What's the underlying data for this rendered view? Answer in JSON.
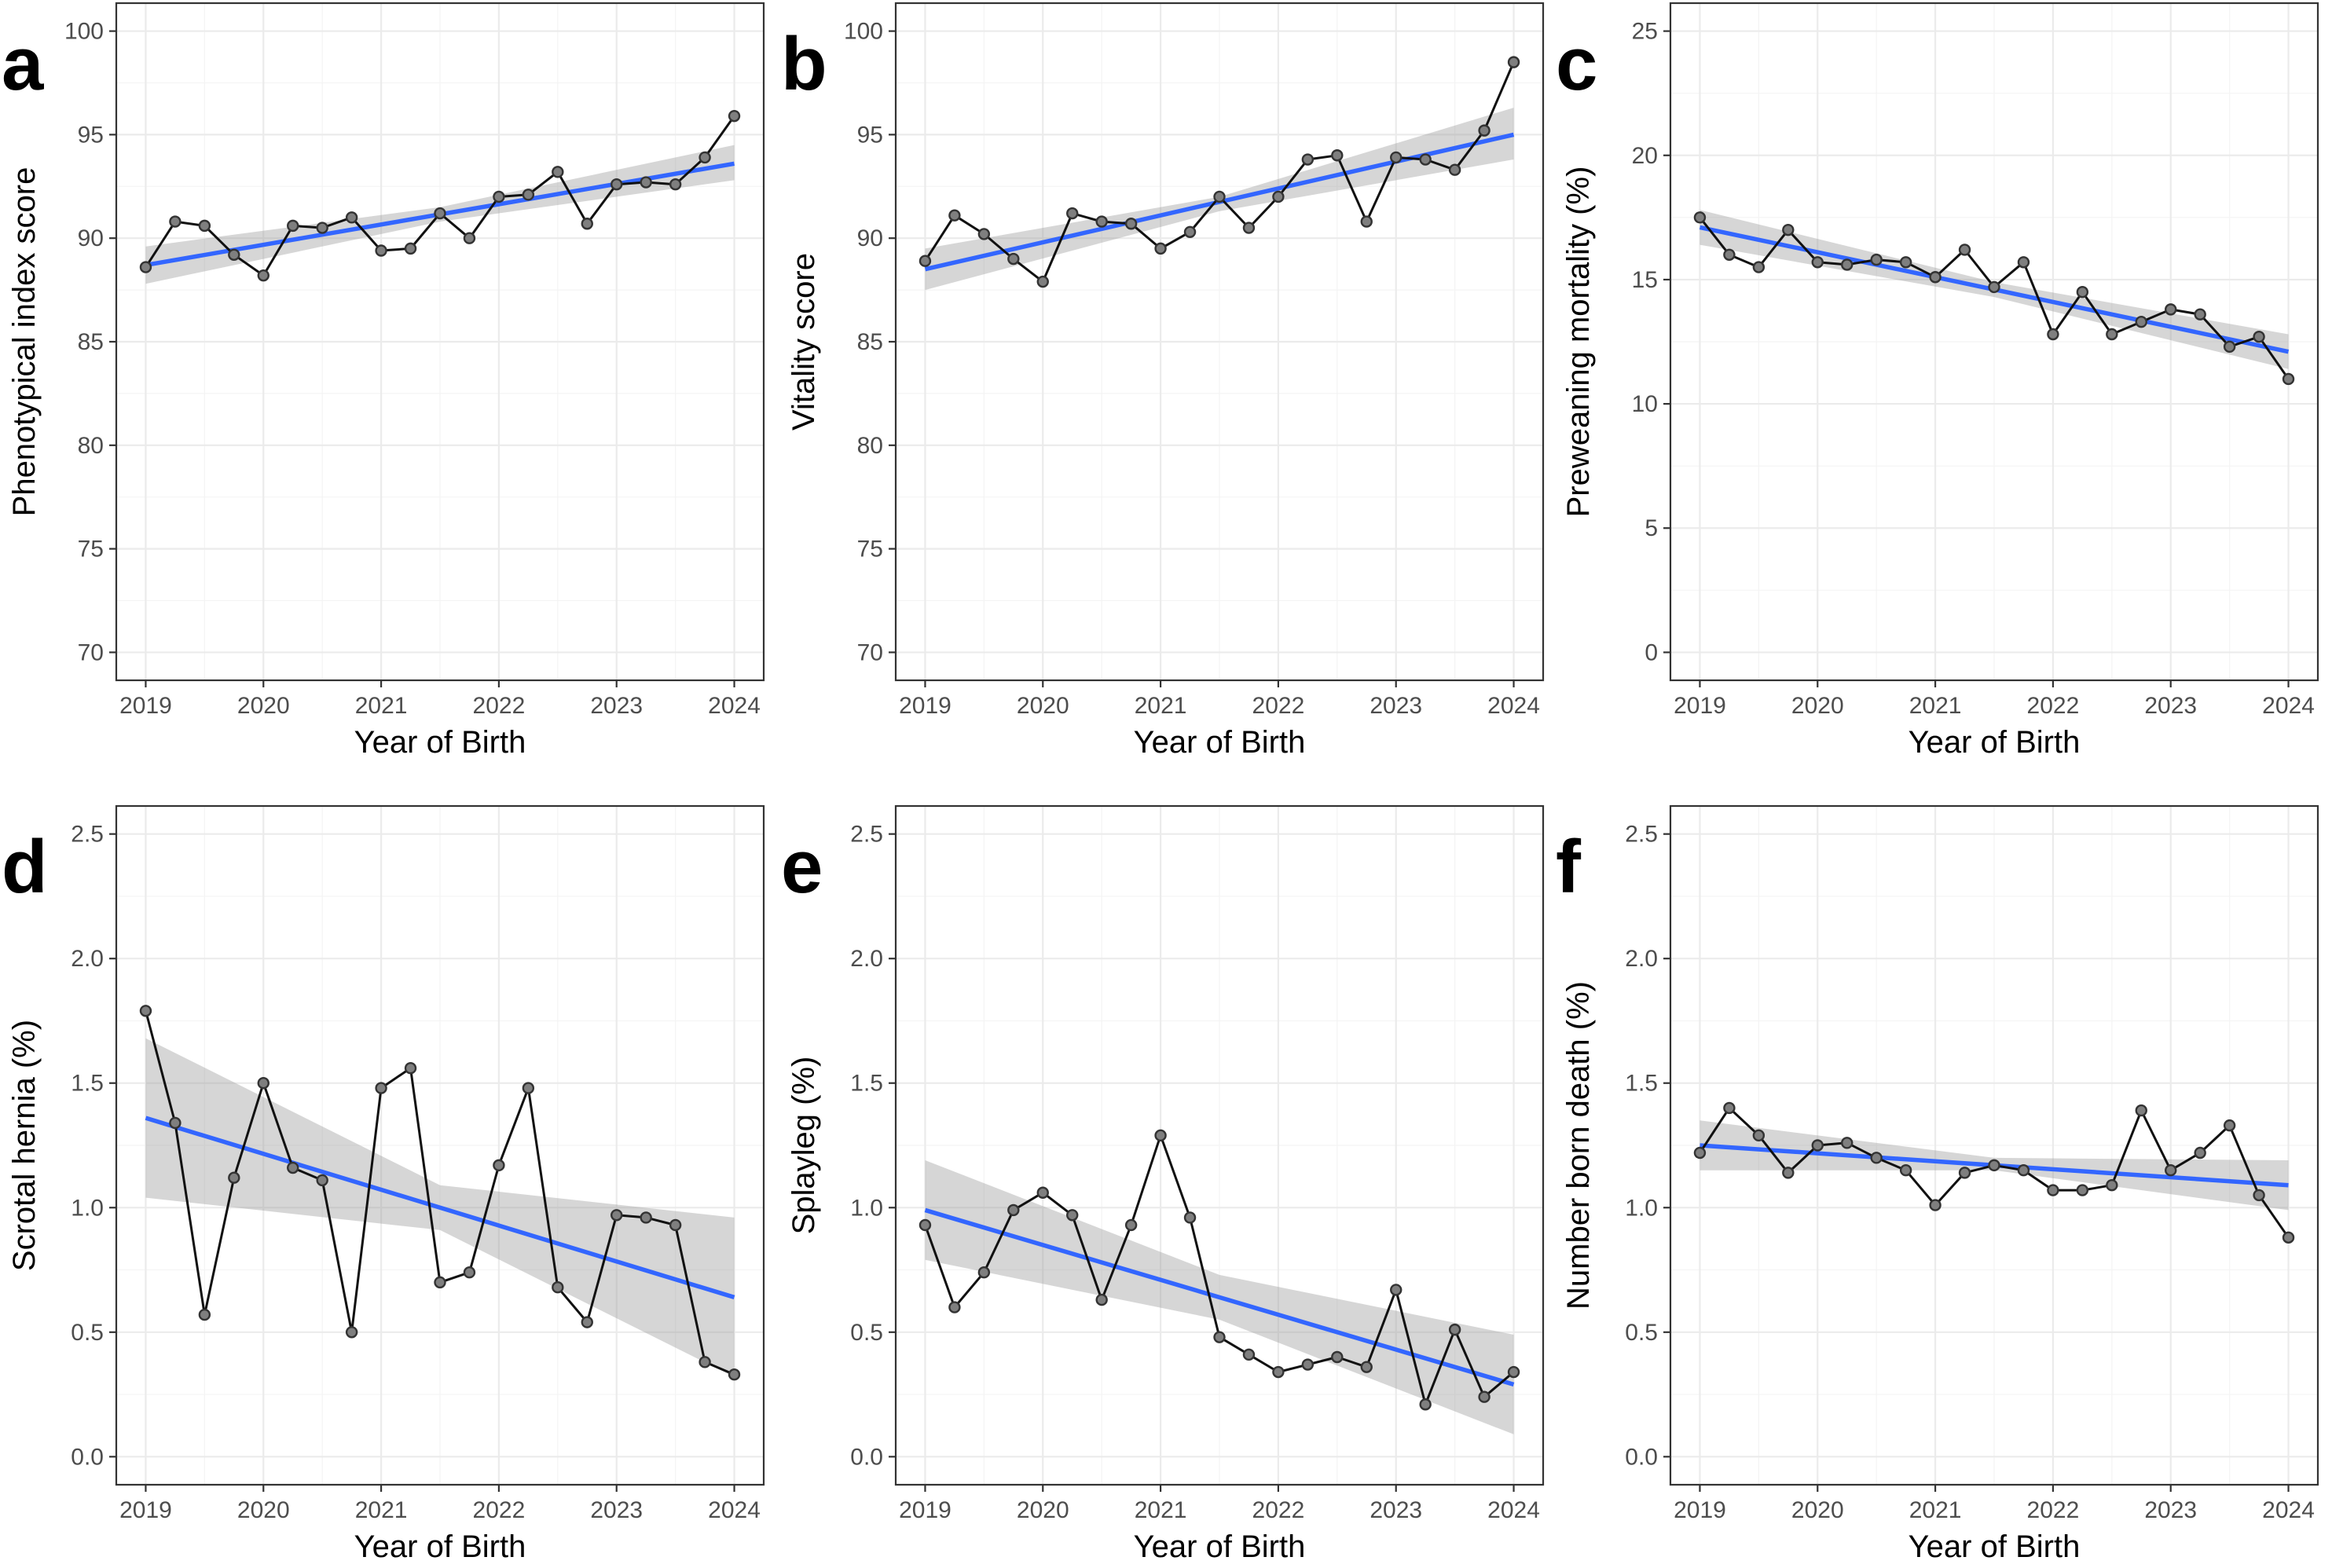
{
  "chart_data": [
    {
      "id": "a",
      "panel_letter": "a",
      "type": "line",
      "xlabel": "Year of Birth",
      "ylabel": "Phenotypical index score",
      "xlim": [
        2019,
        2024
      ],
      "ylim": [
        70,
        100
      ],
      "x_ticks": [
        2019,
        2020,
        2021,
        2022,
        2023,
        2024
      ],
      "x_tick_labels": [
        "2019",
        "2020",
        "2021",
        "2022",
        "2023",
        "2024"
      ],
      "y_ticks": [
        70,
        75,
        80,
        85,
        90,
        95,
        100
      ],
      "y_tick_labels": [
        "70",
        "75",
        "80",
        "85",
        "90",
        "95",
        "100"
      ],
      "grid": true,
      "x": [
        2019.0,
        2019.25,
        2019.5,
        2019.75,
        2020.0,
        2020.25,
        2020.5,
        2020.75,
        2021.0,
        2021.25,
        2021.5,
        2021.75,
        2022.0,
        2022.25,
        2022.5,
        2022.75,
        2023.0,
        2023.25,
        2023.5,
        2023.75,
        2024.0
      ],
      "values": [
        88.6,
        90.8,
        90.6,
        89.2,
        88.2,
        90.6,
        90.5,
        91.0,
        89.4,
        89.5,
        91.2,
        90.0,
        92.0,
        92.1,
        93.2,
        90.7,
        92.6,
        92.7,
        92.6,
        93.9,
        95.9
      ],
      "trend": {
        "x": [
          2019,
          2024
        ],
        "y": [
          88.7,
          93.6
        ]
      },
      "ci": {
        "x": [
          2019,
          2021.5,
          2024
        ],
        "lower": [
          87.8,
          90.8,
          92.8
        ],
        "upper": [
          89.6,
          91.5,
          94.5
        ]
      },
      "colors": {
        "series": "#111111",
        "points": "#7f7f7f",
        "trend": "#3366ff",
        "band": "#999999"
      }
    },
    {
      "id": "b",
      "panel_letter": "b",
      "type": "line",
      "xlabel": "Year of Birth",
      "ylabel": "Vitality score",
      "xlim": [
        2019,
        2024
      ],
      "ylim": [
        70,
        100
      ],
      "x_ticks": [
        2019,
        2020,
        2021,
        2022,
        2023,
        2024
      ],
      "x_tick_labels": [
        "2019",
        "2020",
        "2021",
        "2022",
        "2023",
        "2024"
      ],
      "y_ticks": [
        70,
        75,
        80,
        85,
        90,
        95,
        100
      ],
      "y_tick_labels": [
        "70",
        "75",
        "80",
        "85",
        "90",
        "95",
        "100"
      ],
      "grid": true,
      "x": [
        2019.0,
        2019.25,
        2019.5,
        2019.75,
        2020.0,
        2020.25,
        2020.5,
        2020.75,
        2021.0,
        2021.25,
        2021.5,
        2021.75,
        2022.0,
        2022.25,
        2022.5,
        2022.75,
        2023.0,
        2023.25,
        2023.5,
        2023.75,
        2024.0
      ],
      "values": [
        88.9,
        91.1,
        90.2,
        89.0,
        87.9,
        91.2,
        90.8,
        90.7,
        89.5,
        90.3,
        92.0,
        90.5,
        92.0,
        93.8,
        94.0,
        90.8,
        93.9,
        93.8,
        93.3,
        95.2,
        98.5
      ],
      "trend": {
        "x": [
          2019,
          2024
        ],
        "y": [
          88.5,
          95.0
        ]
      },
      "ci": {
        "x": [
          2019,
          2021.5,
          2024
        ],
        "lower": [
          87.5,
          91.3,
          93.8
        ],
        "upper": [
          89.5,
          92.0,
          96.3
        ]
      },
      "colors": {
        "series": "#111111",
        "points": "#7f7f7f",
        "trend": "#3366ff",
        "band": "#999999"
      }
    },
    {
      "id": "c",
      "panel_letter": "c",
      "type": "line",
      "xlabel": "Year of Birth",
      "ylabel": "Preweaning mortality (%)",
      "xlim": [
        2019,
        2024
      ],
      "ylim": [
        0,
        25
      ],
      "x_ticks": [
        2019,
        2020,
        2021,
        2022,
        2023,
        2024
      ],
      "x_tick_labels": [
        "2019",
        "2020",
        "2021",
        "2022",
        "2023",
        "2024"
      ],
      "y_ticks": [
        0,
        5,
        10,
        15,
        20,
        25
      ],
      "y_tick_labels": [
        "0",
        "5",
        "10",
        "15",
        "20",
        "25"
      ],
      "grid": true,
      "x": [
        2019.0,
        2019.25,
        2019.5,
        2019.75,
        2020.0,
        2020.25,
        2020.5,
        2020.75,
        2021.0,
        2021.25,
        2021.5,
        2021.75,
        2022.0,
        2022.25,
        2022.5,
        2022.75,
        2023.0,
        2023.25,
        2023.5,
        2023.75,
        2024.0
      ],
      "values": [
        17.5,
        16.0,
        15.5,
        17.0,
        15.7,
        15.6,
        15.8,
        15.7,
        15.1,
        16.2,
        14.7,
        15.7,
        12.8,
        14.5,
        12.8,
        13.3,
        13.8,
        13.6,
        12.3,
        12.7,
        11.0
      ],
      "trend": {
        "x": [
          2019,
          2024
        ],
        "y": [
          17.1,
          12.1
        ]
      },
      "ci": {
        "x": [
          2019,
          2021.5,
          2024
        ],
        "lower": [
          16.4,
          14.3,
          11.4
        ],
        "upper": [
          17.8,
          14.9,
          12.8
        ]
      },
      "colors": {
        "series": "#111111",
        "points": "#7f7f7f",
        "trend": "#3366ff",
        "band": "#999999"
      }
    },
    {
      "id": "d",
      "panel_letter": "d",
      "type": "line",
      "xlabel": "Year of Birth",
      "ylabel": "Scrotal hernia (%)",
      "xlim": [
        2019,
        2024
      ],
      "ylim": [
        0,
        2.5
      ],
      "x_ticks": [
        2019,
        2020,
        2021,
        2022,
        2023,
        2024
      ],
      "x_tick_labels": [
        "2019",
        "2020",
        "2021",
        "2022",
        "2023",
        "2024"
      ],
      "y_ticks": [
        0,
        0.5,
        1.0,
        1.5,
        2.0,
        2.5
      ],
      "y_tick_labels": [
        "0.0",
        "0.5",
        "1.0",
        "1.5",
        "2.0",
        "2.5"
      ],
      "grid": true,
      "x": [
        2019.0,
        2019.25,
        2019.5,
        2019.75,
        2020.0,
        2020.25,
        2020.5,
        2020.75,
        2021.0,
        2021.25,
        2021.5,
        2021.75,
        2022.0,
        2022.25,
        2022.5,
        2022.75,
        2023.0,
        2023.25,
        2023.5,
        2023.75,
        2024.0
      ],
      "values": [
        1.79,
        1.34,
        0.57,
        1.12,
        1.5,
        1.16,
        1.11,
        0.5,
        1.48,
        1.56,
        0.7,
        0.74,
        1.17,
        1.48,
        0.68,
        0.54,
        0.97,
        0.96,
        0.93,
        0.38,
        0.33
      ],
      "trend": {
        "x": [
          2019,
          2024
        ],
        "y": [
          1.36,
          0.64
        ]
      },
      "ci": {
        "x": [
          2019,
          2021.5,
          2024
        ],
        "lower": [
          1.04,
          0.91,
          0.32
        ],
        "upper": [
          1.68,
          1.09,
          0.96
        ]
      },
      "colors": {
        "series": "#111111",
        "points": "#7f7f7f",
        "trend": "#3366ff",
        "band": "#999999"
      }
    },
    {
      "id": "e",
      "panel_letter": "e",
      "type": "line",
      "xlabel": "Year of Birth",
      "ylabel": "Splayleg (%)",
      "xlim": [
        2019,
        2024
      ],
      "ylim": [
        0,
        2.5
      ],
      "x_ticks": [
        2019,
        2020,
        2021,
        2022,
        2023,
        2024
      ],
      "x_tick_labels": [
        "2019",
        "2020",
        "2021",
        "2022",
        "2023",
        "2024"
      ],
      "y_ticks": [
        0,
        0.5,
        1.0,
        1.5,
        2.0,
        2.5
      ],
      "y_tick_labels": [
        "0.0",
        "0.5",
        "1.0",
        "1.5",
        "2.0",
        "2.5"
      ],
      "grid": true,
      "x": [
        2019.0,
        2019.25,
        2019.5,
        2019.75,
        2020.0,
        2020.25,
        2020.5,
        2020.75,
        2021.0,
        2021.25,
        2021.5,
        2021.75,
        2022.0,
        2022.25,
        2022.5,
        2022.75,
        2023.0,
        2023.25,
        2023.5,
        2023.75,
        2024.0
      ],
      "values": [
        0.93,
        0.6,
        0.74,
        0.99,
        1.06,
        0.97,
        0.63,
        0.93,
        1.29,
        0.96,
        0.48,
        0.41,
        0.34,
        0.37,
        0.4,
        0.36,
        0.67,
        0.21,
        0.51,
        0.24,
        0.34
      ],
      "trend": {
        "x": [
          2019,
          2024
        ],
        "y": [
          0.99,
          0.29
        ]
      },
      "ci": {
        "x": [
          2019,
          2021.5,
          2024
        ],
        "lower": [
          0.79,
          0.55,
          0.09
        ],
        "upper": [
          1.19,
          0.73,
          0.49
        ]
      },
      "colors": {
        "series": "#111111",
        "points": "#7f7f7f",
        "trend": "#3366ff",
        "band": "#999999"
      }
    },
    {
      "id": "f",
      "panel_letter": "f",
      "type": "line",
      "xlabel": "Year of Birth",
      "ylabel": "Number born death (%)",
      "xlim": [
        2019,
        2024
      ],
      "ylim": [
        0,
        2.5
      ],
      "x_ticks": [
        2019,
        2020,
        2021,
        2022,
        2023,
        2024
      ],
      "x_tick_labels": [
        "2019",
        "2020",
        "2021",
        "2022",
        "2023",
        "2024"
      ],
      "y_ticks": [
        0,
        0.5,
        1.0,
        1.5,
        2.0,
        2.5
      ],
      "y_tick_labels": [
        "0.0",
        "0.5",
        "1.0",
        "1.5",
        "2.0",
        "2.5"
      ],
      "grid": true,
      "x": [
        2019.0,
        2019.25,
        2019.5,
        2019.75,
        2020.0,
        2020.25,
        2020.5,
        2020.75,
        2021.0,
        2021.25,
        2021.5,
        2021.75,
        2022.0,
        2022.25,
        2022.5,
        2022.75,
        2023.0,
        2023.25,
        2023.5,
        2023.75,
        2024.0
      ],
      "values": [
        1.22,
        1.4,
        1.29,
        1.14,
        1.25,
        1.26,
        1.2,
        1.15,
        1.01,
        1.14,
        1.17,
        1.15,
        1.07,
        1.07,
        1.09,
        1.39,
        1.15,
        1.22,
        1.33,
        1.05,
        0.88
      ],
      "trend": {
        "x": [
          2019,
          2024
        ],
        "y": [
          1.25,
          1.09
        ]
      },
      "ci": {
        "x": [
          2019,
          2021.5,
          2024
        ],
        "lower": [
          1.15,
          1.15,
          0.99
        ],
        "upper": [
          1.35,
          1.2,
          1.19
        ]
      },
      "colors": {
        "series": "#111111",
        "points": "#7f7f7f",
        "trend": "#3366ff",
        "band": "#999999"
      }
    }
  ]
}
